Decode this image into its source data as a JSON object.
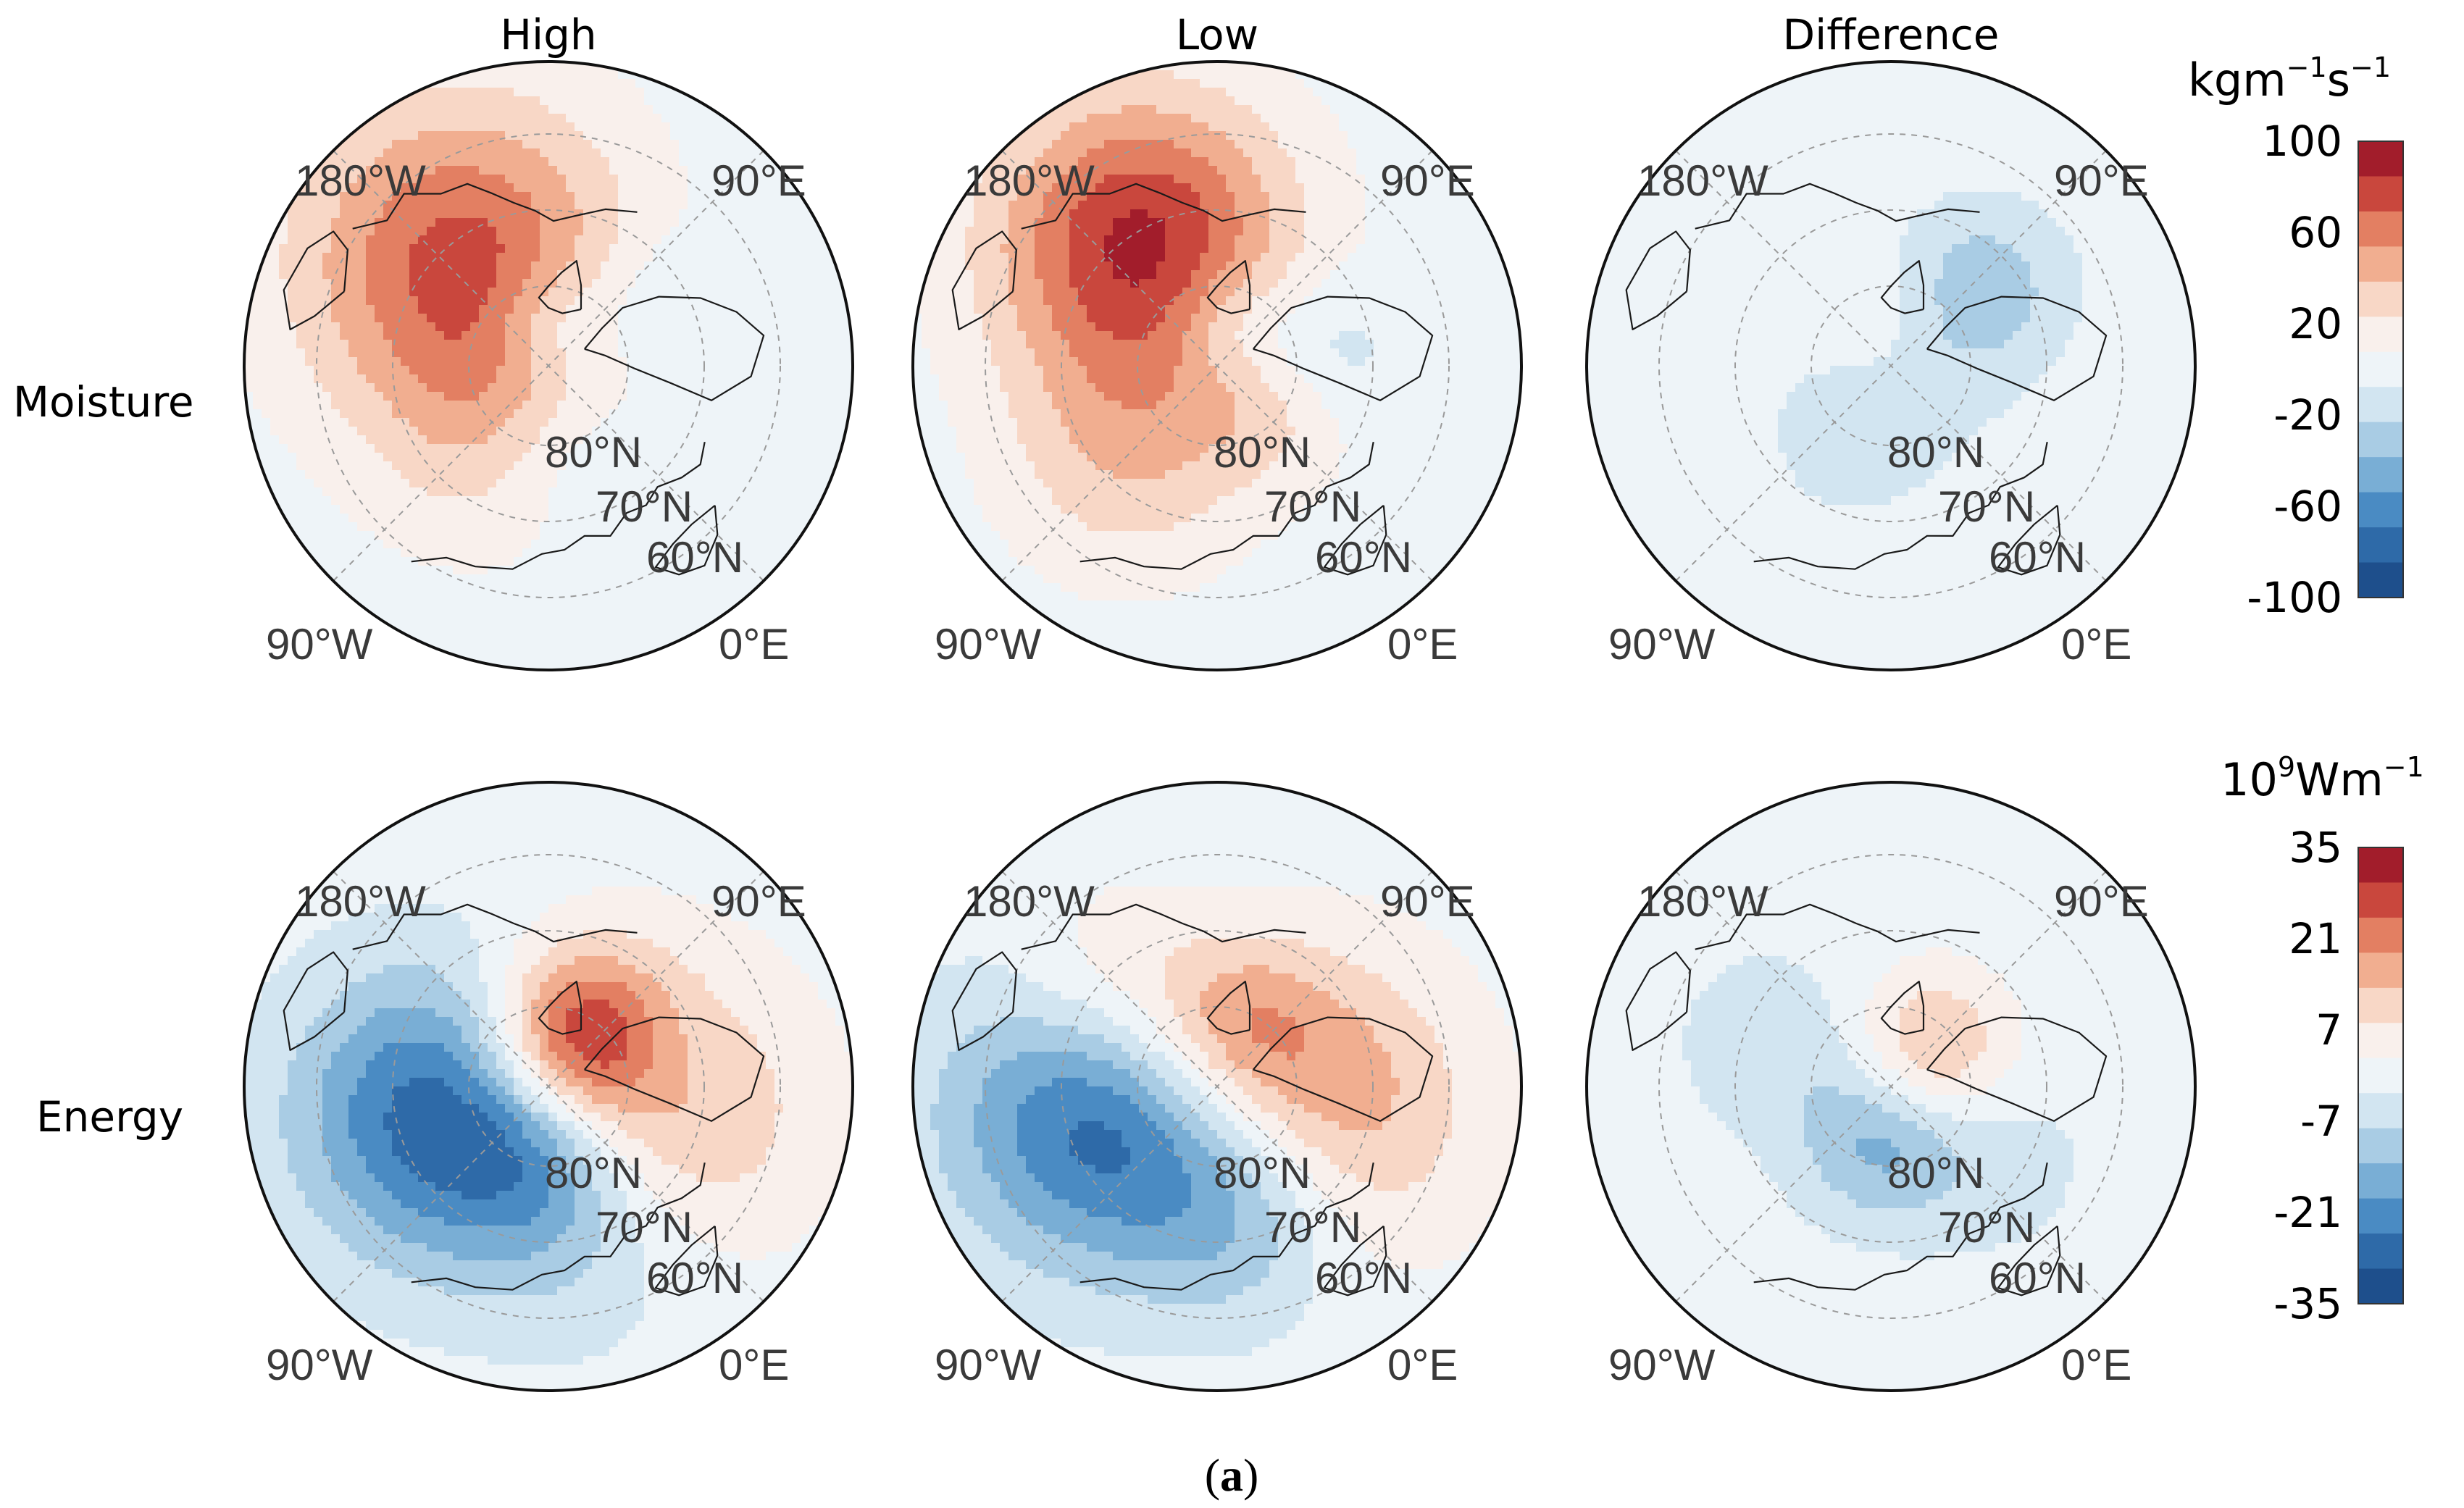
{
  "figure": {
    "columns": [
      "High",
      "Low",
      "Difference"
    ],
    "rows": [
      "Moisture",
      "Energy"
    ],
    "caption_letter": "a",
    "lon_labels": [
      "180°W",
      "90°E",
      "90°W",
      "0°E"
    ],
    "lat_labels": [
      "80°N",
      "70°N",
      "60°N"
    ]
  },
  "colorbars": {
    "moisture": {
      "unit_base": "kgm",
      "unit_exp1": "−1",
      "unit_mid": "s",
      "unit_exp2": "−1",
      "ticks": [
        "100",
        "60",
        "20",
        "-20",
        "-60",
        "-100"
      ]
    },
    "energy": {
      "unit_base": "10",
      "unit_exp1": "9",
      "unit_mid": "Wm",
      "unit_exp2": "−1",
      "ticks": [
        "35",
        "21",
        "7",
        "-7",
        "-21",
        "-35"
      ]
    }
  },
  "palette": [
    "#1e4f8c",
    "#2e6aa8",
    "#4a8bc3",
    "#79aed5",
    "#a9cce4",
    "#d2e5f1",
    "#eef4f8",
    "#f9f0ec",
    "#f8d7c6",
    "#f1ae90",
    "#e37f62",
    "#c9473d",
    "#a21d2b"
  ],
  "maps": {
    "moisture_high": [
      [
        230,
        190,
        160,
        0.8
      ],
      [
        130,
        120,
        120,
        0.25
      ],
      [
        270,
        60,
        55,
        -0.25
      ],
      [
        75,
        125,
        80,
        -0.2
      ],
      [
        330,
        160,
        75,
        -0.2
      ]
    ],
    "moisture_low": [
      [
        238,
        200,
        145,
        0.95
      ],
      [
        135,
        175,
        120,
        0.35
      ],
      [
        290,
        60,
        60,
        -0.25
      ],
      [
        40,
        100,
        80,
        0.2
      ],
      [
        350,
        150,
        70,
        -0.25
      ]
    ],
    "moisture_difference": [
      [
        320,
        170,
        80,
        -0.35
      ],
      [
        120,
        110,
        90,
        -0.15
      ],
      [
        260,
        50,
        60,
        0.1
      ],
      [
        20,
        60,
        80,
        -0.1
      ]
    ],
    "energy_high": [
      [
        165,
        150,
        140,
        -0.9
      ],
      [
        300,
        75,
        85,
        0.8
      ],
      [
        20,
        130,
        150,
        0.7
      ],
      [
        70,
        175,
        130,
        -0.45
      ],
      [
        95,
        90,
        80,
        -0.3
      ],
      [
        345,
        170,
        70,
        -0.15
      ]
    ],
    "energy_low": [
      [
        170,
        150,
        150,
        -1.0
      ],
      [
        285,
        85,
        85,
        0.4
      ],
      [
        15,
        120,
        150,
        0.7
      ],
      [
        75,
        175,
        110,
        -0.5
      ],
      [
        220,
        190,
        110,
        0.5
      ]
    ],
    "energy_difference": [
      [
        320,
        75,
        75,
        0.5
      ],
      [
        100,
        75,
        80,
        -0.45
      ],
      [
        200,
        175,
        90,
        -0.2
      ],
      [
        35,
        175,
        100,
        -0.15
      ]
    ]
  }
}
